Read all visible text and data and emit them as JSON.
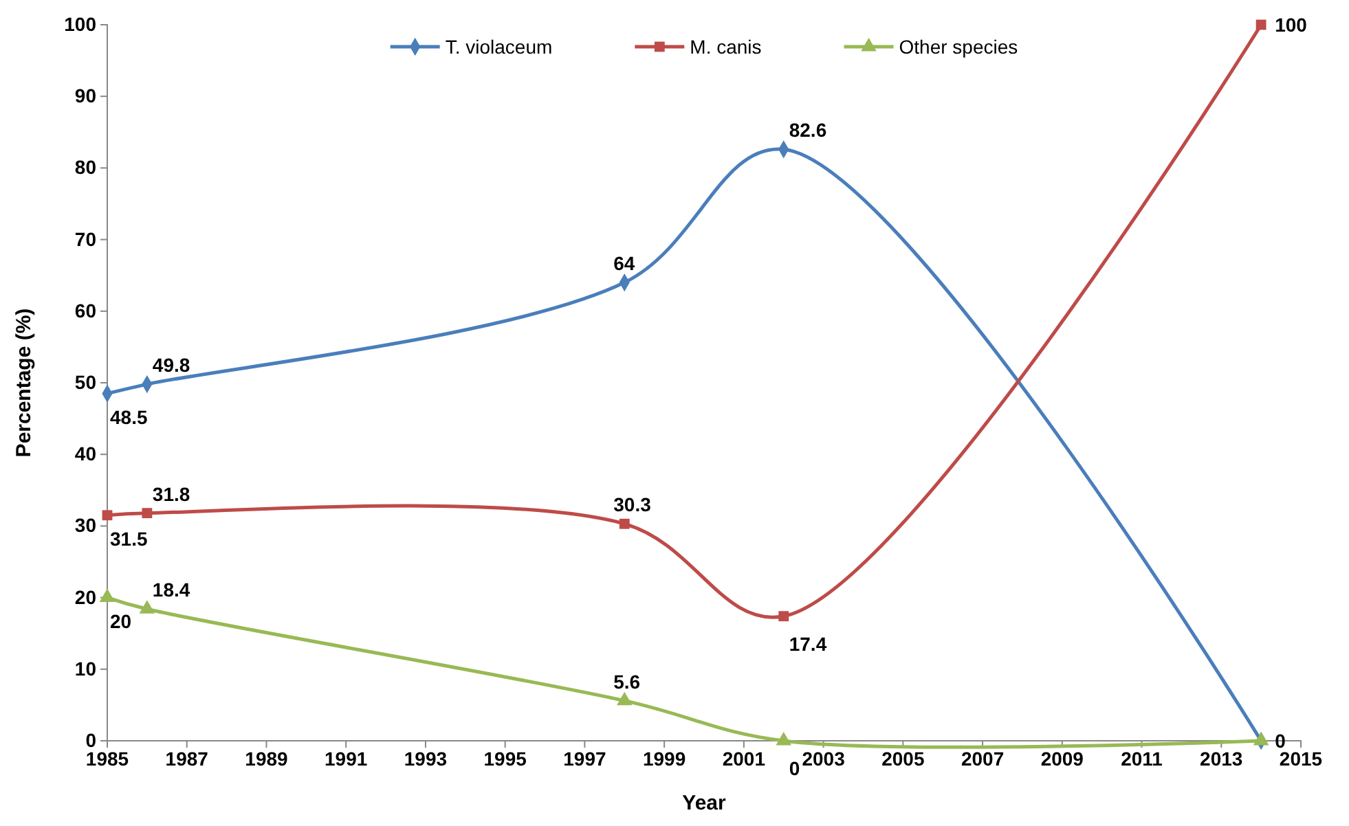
{
  "chart_data": {
    "type": "line",
    "xlabel": "Year",
    "ylabel": "Percentage (%)",
    "x": [
      1985,
      1986,
      1998,
      2002,
      2014
    ],
    "xlim": [
      1985,
      2015
    ],
    "xticks": [
      1985,
      1987,
      1989,
      1991,
      1993,
      1995,
      1997,
      1999,
      2001,
      2003,
      2005,
      2007,
      2009,
      2011,
      2013,
      2015
    ],
    "ylim": [
      0,
      100
    ],
    "yticks": [
      0,
      10,
      20,
      30,
      40,
      50,
      60,
      70,
      80,
      90,
      100
    ],
    "grid": false,
    "legend": "top",
    "series": [
      {
        "name": "T. violaceum",
        "color": "#4a7ebb",
        "marker": "diamond",
        "values": [
          48.5,
          49.8,
          64,
          82.6,
          0
        ],
        "value_labels": [
          "48.5",
          "49.8",
          "64",
          "82.6",
          "0"
        ]
      },
      {
        "name": "M. canis",
        "color": "#be4b48",
        "marker": "square",
        "values": [
          31.5,
          31.8,
          30.3,
          17.4,
          100
        ],
        "value_labels": [
          "31.5",
          "31.8",
          "30.3",
          "17.4",
          "100"
        ]
      },
      {
        "name": "Other species",
        "color": "#98b954",
        "marker": "triangle",
        "values": [
          20,
          18.4,
          5.6,
          0,
          0
        ],
        "value_labels": [
          "20",
          "18.4",
          "5.6",
          "0",
          null
        ]
      }
    ]
  }
}
